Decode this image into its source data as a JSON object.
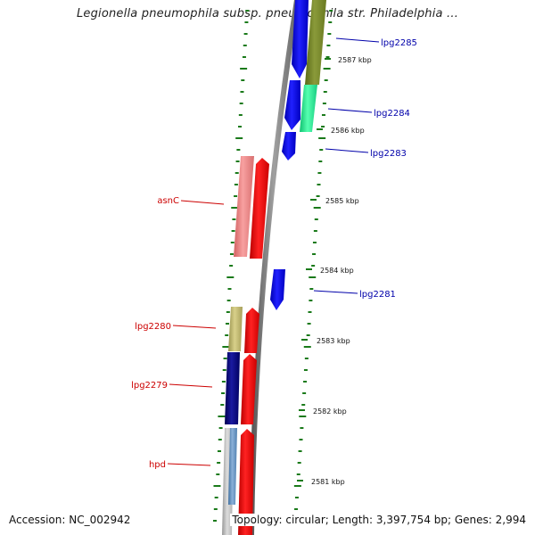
{
  "title": "Legionella pneumophila subsp. pneumophila str. Philadelphia ...",
  "footer": {
    "accession": "Accession: NC_002942",
    "topology": "Topology: circular; Length: 3,397,754 bp; Genes: 2,994"
  },
  "colors": {
    "backbone": "#7a7a7a",
    "tick": "#1a7a1a",
    "forward_label": "#cc0000",
    "reverse_label": "#0000aa"
  },
  "scale_labels": [
    "2587 kbp",
    "2586 kbp",
    "2585 kbp",
    "2584 kbp",
    "2583 kbp",
    "2582 kbp",
    "2581 kbp"
  ],
  "genes": [
    {
      "name": "lpg2285",
      "strand": "reverse",
      "color": "#0000ff"
    },
    {
      "name": "lpg2284",
      "strand": "reverse",
      "color": "#0000ff"
    },
    {
      "name": "lpg2283",
      "strand": "reverse",
      "color": "#0000ff"
    },
    {
      "name": "asnC",
      "strand": "forward",
      "color": "#ff0000"
    },
    {
      "name": "lpg2281",
      "strand": "reverse",
      "color": "#0000ff"
    },
    {
      "name": "lpg2280",
      "strand": "forward",
      "color": "#ff0000"
    },
    {
      "name": "lpg2279",
      "strand": "forward",
      "color": "#ff0000"
    },
    {
      "name": "hpd",
      "strand": "forward",
      "color": "#ff0000"
    }
  ],
  "cog_colors": {
    "olive": "#7b8b2a",
    "mint": "#22ee99",
    "pink": "#f08080",
    "khaki": "#bdb76b",
    "navy": "#000080",
    "steel": "#5f8fbf",
    "grey": "#bbbbbb"
  }
}
